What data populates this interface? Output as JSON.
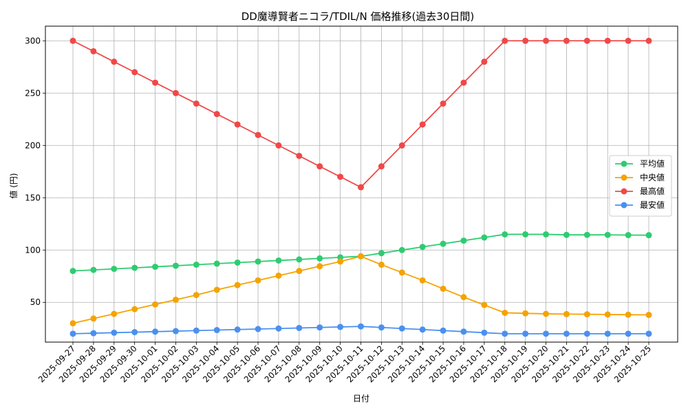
{
  "chart_data": {
    "type": "line",
    "title": "DD魔導賢者ニコラ/TDIL/N 価格推移(過去30日間)",
    "xlabel": "日付",
    "ylabel": "値 (円)",
    "ylim": [
      12,
      314
    ],
    "yticks": [
      50,
      100,
      150,
      200,
      250,
      300
    ],
    "grid": true,
    "legend_position": "center-right",
    "x": [
      "2025-09-27",
      "2025-09-28",
      "2025-09-29",
      "2025-09-30",
      "2025-10-01",
      "2025-10-02",
      "2025-10-03",
      "2025-10-04",
      "2025-10-05",
      "2025-10-06",
      "2025-10-07",
      "2025-10-08",
      "2025-10-09",
      "2025-10-10",
      "2025-10-11",
      "2025-10-12",
      "2025-10-13",
      "2025-10-14",
      "2025-10-15",
      "2025-10-16",
      "2025-10-17",
      "2025-10-18",
      "2025-10-19",
      "2025-10-20",
      "2025-10-21",
      "2025-10-22",
      "2025-10-23",
      "2025-10-24",
      "2025-10-25"
    ],
    "series": [
      {
        "name": "平均値",
        "color": "#2ecc71",
        "values": [
          80,
          81,
          82,
          83,
          84,
          85,
          86,
          87,
          88,
          89,
          90,
          91,
          92,
          93,
          94,
          97,
          100,
          103,
          106,
          109,
          112,
          115,
          115,
          115,
          114.5,
          114.5,
          114.5,
          114.3,
          114.2
        ]
      },
      {
        "name": "中央値",
        "color": "#f5a300",
        "values": [
          30,
          34.5,
          39,
          43.5,
          48,
          52.5,
          57,
          62,
          66.5,
          71,
          75.5,
          80,
          84.5,
          89,
          94,
          86,
          78.5,
          71,
          63,
          55,
          47.5,
          40,
          39.5,
          39,
          38.8,
          38.6,
          38.4,
          38.2,
          38
        ]
      },
      {
        "name": "最高値",
        "color": "#f04848",
        "values": [
          300,
          290,
          280,
          270,
          260,
          250,
          240,
          230,
          220,
          210,
          200,
          190,
          180,
          170,
          160,
          180,
          200,
          220,
          240,
          260,
          280,
          300,
          300,
          300,
          300,
          300,
          300,
          300,
          300
        ]
      },
      {
        "name": "最安値",
        "color": "#4a90f0",
        "values": [
          20,
          20.5,
          21,
          21.5,
          22,
          22.5,
          23,
          23.5,
          24,
          24.5,
          25,
          25.5,
          26,
          26.5,
          27,
          26,
          25,
          24,
          23,
          22,
          21,
          20,
          20,
          20,
          20,
          20,
          20,
          20,
          20
        ]
      }
    ]
  }
}
